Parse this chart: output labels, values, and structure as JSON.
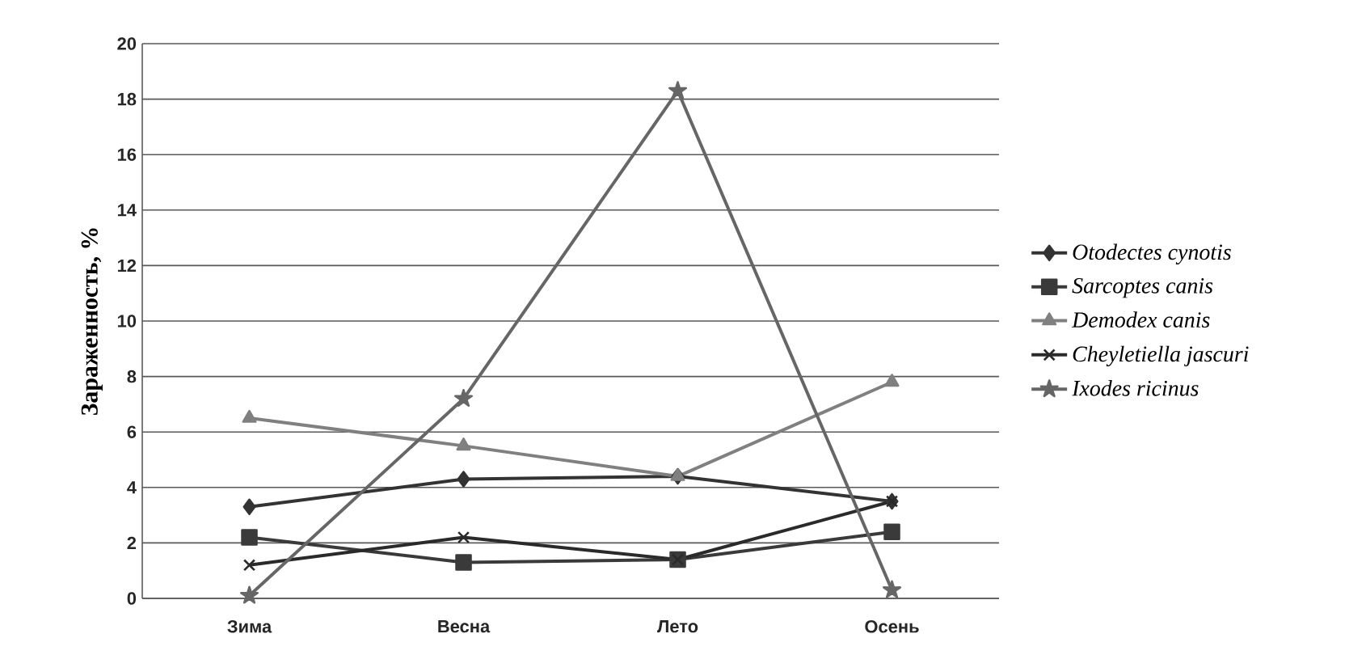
{
  "chart_data": {
    "type": "line",
    "ylabel": "Зараженность, %",
    "categories": [
      "Зима",
      "Весна",
      "Лето",
      "Осень"
    ],
    "series": [
      {
        "name": "Otodectes cynotis",
        "color": "#333333",
        "marker": "diamond",
        "values": [
          3.3,
          4.3,
          4.4,
          3.5
        ]
      },
      {
        "name": "Sarcoptes canis",
        "color": "#3a3a3a",
        "marker": "square",
        "values": [
          2.2,
          1.3,
          1.4,
          2.4
        ]
      },
      {
        "name": "Demodex canis",
        "color": "#808080",
        "marker": "triangle",
        "values": [
          6.5,
          5.5,
          4.4,
          7.8
        ]
      },
      {
        "name": "Cheyletiella jascuri",
        "color": "#2a2a2a",
        "marker": "cross",
        "values": [
          1.2,
          2.2,
          1.4,
          3.5
        ]
      },
      {
        "name": "Ixodes ricinus",
        "color": "#666666",
        "marker": "star",
        "values": [
          0.1,
          7.2,
          18.3,
          0.3
        ]
      }
    ],
    "ylim": [
      0,
      20
    ],
    "yticks": [
      0,
      2,
      4,
      6,
      8,
      10,
      12,
      14,
      16,
      18,
      20
    ],
    "grid": "y",
    "legend": "right",
    "line_style": "solid"
  }
}
